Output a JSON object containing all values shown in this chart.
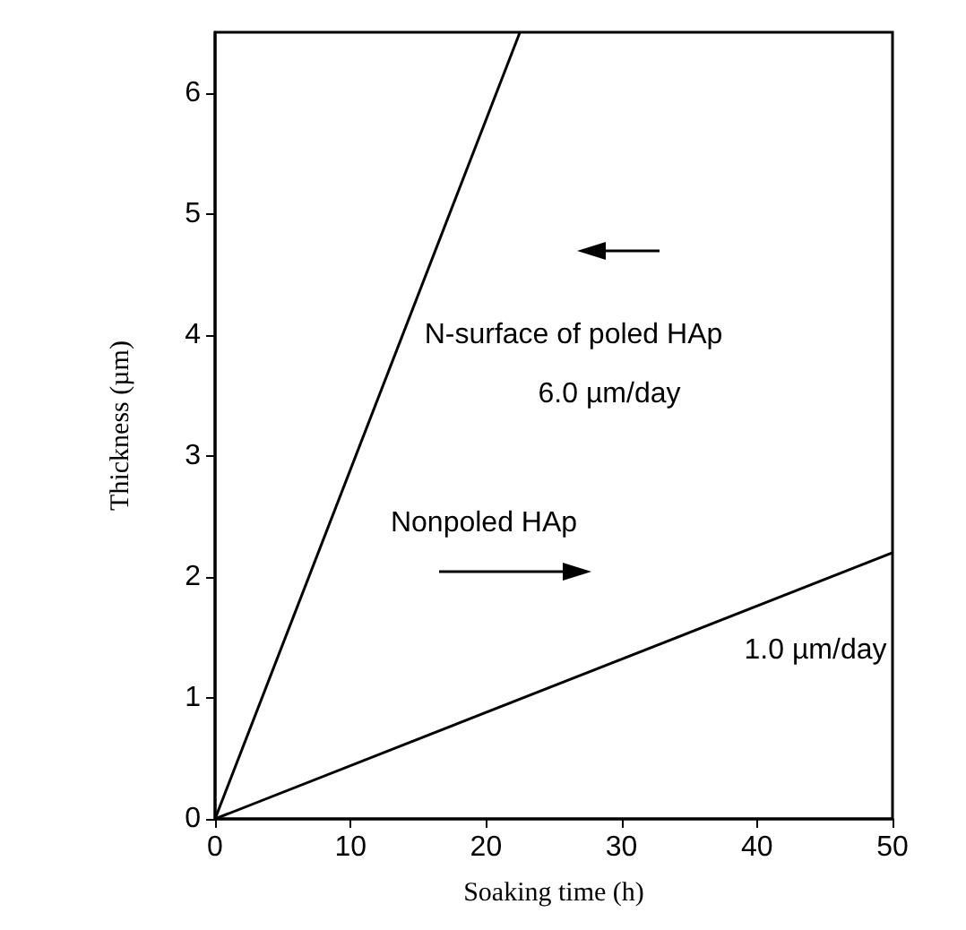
{
  "chart_data": {
    "type": "line",
    "xlabel": "Soaking time (h)",
    "ylabel": "Thickness (µm)",
    "xlim": [
      0,
      50
    ],
    "xticks": [
      0,
      10,
      20,
      30,
      40,
      50
    ],
    "ylim": [
      0,
      6.5
    ],
    "yticks": [
      0,
      1,
      2,
      3,
      4,
      5,
      6
    ],
    "series": [
      {
        "color": "#000000",
        "x": [
          0,
          22.5
        ],
        "values": [
          0,
          6.5
        ]
      },
      {
        "color": "#000000",
        "x": [
          0,
          50
        ],
        "values": [
          0,
          2.2
        ]
      }
    ],
    "annotations": [
      "N-surface of poled HAp",
      "6.0 µm/day",
      "Nonpoled HAp",
      "1.0 µm/day"
    ],
    "grid": false,
    "marker": "none",
    "line_style": "solid"
  }
}
